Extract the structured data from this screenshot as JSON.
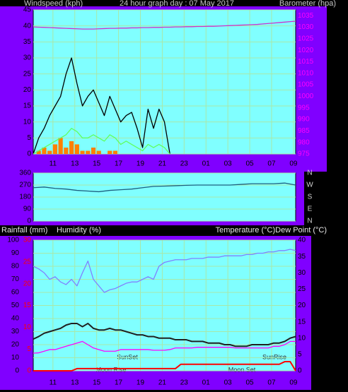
{
  "chart_data": [
    {
      "type": "line",
      "title": "24 hour graph day : 07 May 2017",
      "y_label": "Windspeed (kph)",
      "y2_label": "Barometer (hpa)",
      "grid": true,
      "xlim": [
        0,
        24
      ],
      "xticks": [
        {
          "value": 1.8,
          "label": "11"
        },
        {
          "value": 3.8,
          "label": "13"
        },
        {
          "value": 5.8,
          "label": "15"
        },
        {
          "value": 7.8,
          "label": "17"
        },
        {
          "value": 9.8,
          "label": "19"
        },
        {
          "value": 11.8,
          "label": "21"
        },
        {
          "value": 13.8,
          "label": "23"
        },
        {
          "value": 15.8,
          "label": "01"
        },
        {
          "value": 17.8,
          "label": "03"
        },
        {
          "value": 19.8,
          "label": "05"
        },
        {
          "value": 21.8,
          "label": "07"
        },
        {
          "value": 23.8,
          "label": "09"
        }
      ],
      "ylim": [
        0,
        45
      ],
      "yticks": [
        0,
        5,
        10,
        15,
        20,
        25,
        30,
        35,
        40,
        45
      ],
      "ycolor": "#000000",
      "y2lim": [
        975,
        1037.5
      ],
      "y2ticks": [
        975,
        980,
        985,
        990,
        995,
        1000,
        1005,
        1010,
        1015,
        1020,
        1025,
        1030,
        1035
      ],
      "y2color": "#ff00ff",
      "x": [
        0,
        0.5,
        1,
        1.5,
        2,
        2.5,
        3,
        3.5,
        4,
        4.5,
        5,
        5.5,
        6,
        6.5,
        7,
        7.5,
        8,
        8.5,
        9,
        9.5,
        10,
        10.5,
        11,
        11.5,
        12,
        12.5,
        13,
        13.5,
        14,
        14.5,
        15,
        15.5,
        16,
        16.5,
        17,
        17.5,
        18,
        18.5,
        19,
        19.5,
        20,
        20.5,
        21,
        21.5,
        22,
        22.5,
        23,
        23.5,
        24
      ],
      "series": [
        {
          "color": "#ff8000",
          "type": "bar",
          "values": [
            0,
            1,
            2,
            1,
            3,
            5,
            2,
            4,
            3,
            1,
            1,
            2,
            1,
            0,
            1,
            1,
            0,
            0,
            0,
            0,
            0,
            0,
            0,
            0,
            0,
            0,
            null,
            null,
            null,
            null,
            null,
            null,
            null,
            null,
            null,
            null,
            null,
            null,
            null,
            null,
            null,
            null,
            null,
            null,
            null,
            null,
            null,
            null,
            null
          ]
        },
        {
          "color": "#000000",
          "values": [
            0,
            5,
            8,
            12,
            15,
            18,
            25,
            30,
            22,
            15,
            18,
            20,
            16,
            12,
            18,
            14,
            10,
            12,
            13,
            8,
            2,
            14,
            8,
            14,
            10,
            0,
            null,
            null,
            null,
            null,
            null,
            null,
            null,
            null,
            null,
            null,
            null,
            null,
            null,
            null,
            null,
            null,
            null,
            null,
            null,
            null,
            null,
            null,
            null
          ]
        },
        {
          "color": "#60ff60",
          "values": [
            0,
            1,
            2,
            3,
            4,
            5,
            6,
            8,
            7,
            5,
            5,
            6,
            5,
            4,
            6,
            5,
            3,
            4,
            3,
            2,
            1,
            3,
            2,
            3,
            2,
            0,
            null,
            null,
            null,
            null,
            null,
            null,
            null,
            null,
            null,
            null,
            null,
            null,
            null,
            null,
            null,
            null,
            null,
            null,
            null,
            null,
            null,
            null,
            null
          ]
        },
        {
          "color": "#cc33cc",
          "axis": "y2",
          "values": [
            1030.1,
            1030,
            1029.9,
            1029.8,
            1029.7,
            1029.6,
            1029.5,
            1029.4,
            1029.3,
            1029.2,
            1029.2,
            1029.2,
            1029.3,
            1029.4,
            1029.5,
            1029.5,
            1029.6,
            1029.6,
            1029.7,
            1029.7,
            1029.8,
            1029.8,
            1029.9,
            1029.9,
            1030,
            1030,
            1030.1,
            1030.1,
            1030.2,
            1030.2,
            1030.3,
            1030.3,
            1030.4,
            1030.4,
            1030.5,
            1030.6,
            1030.7,
            1030.8,
            1030.9,
            1031,
            1031.1,
            1031.2,
            1031.4,
            1031.6,
            1031.8,
            1032,
            1032.2,
            1032.4,
            1032.6
          ]
        }
      ]
    },
    {
      "type": "line",
      "grid": true,
      "xlim": [
        0,
        24
      ],
      "ylim": [
        0,
        360
      ],
      "yticks": [
        0,
        90,
        180,
        270,
        360
      ],
      "ycolor": "#000000",
      "y2lim": [
        0,
        360
      ],
      "y2ticks": [
        {
          "value": 360,
          "label": "N"
        },
        {
          "value": 270,
          "label": "W"
        },
        {
          "value": 180,
          "label": "S"
        },
        {
          "value": 90,
          "label": "E"
        },
        {
          "value": 0,
          "label": "N"
        }
      ],
      "y2color": "#d0d0d0",
      "x": [
        0,
        1,
        2,
        3,
        4,
        5,
        6,
        7,
        8,
        9,
        10,
        11,
        12,
        13,
        14,
        15,
        16,
        17,
        18,
        19,
        20,
        21,
        22,
        23,
        24
      ],
      "series": [
        {
          "color": "#1f5f7f",
          "values": [
            250,
            255,
            245,
            240,
            230,
            225,
            220,
            230,
            235,
            240,
            250,
            260,
            262,
            265,
            268,
            270,
            270,
            270,
            270,
            275,
            280,
            280,
            280,
            285,
            270
          ]
        }
      ]
    },
    {
      "type": "line",
      "y3_label": "Rainfall (mm)",
      "y_label": "Humidity (%)",
      "y2_label": "Temperature (°C)Dew Point (°C)",
      "grid": true,
      "xlim": [
        0,
        24
      ],
      "xticks": [
        {
          "value": 1.8,
          "label": "11"
        },
        {
          "value": 3.8,
          "label": "13"
        },
        {
          "value": 5.8,
          "label": "15"
        },
        {
          "value": 7.8,
          "label": "17"
        },
        {
          "value": 9.8,
          "label": "19"
        },
        {
          "value": 11.8,
          "label": "21"
        },
        {
          "value": 13.8,
          "label": "23"
        },
        {
          "value": 15.8,
          "label": "01"
        },
        {
          "value": 17.8,
          "label": "03"
        },
        {
          "value": 19.8,
          "label": "05"
        },
        {
          "value": 21.8,
          "label": "07"
        },
        {
          "value": 23.8,
          "label": "09"
        }
      ],
      "ylim": [
        0,
        100
      ],
      "yticks": [
        0,
        10,
        20,
        30,
        40,
        50,
        60,
        70,
        80,
        90,
        100
      ],
      "ycolor": "#000000",
      "y3lim": [
        0,
        30
      ],
      "y3ticks": [
        0,
        5,
        10,
        15,
        20,
        25,
        30
      ],
      "y3color": "#ff0000",
      "y2lim": [
        0,
        40
      ],
      "y2ticks": [
        0,
        5,
        10,
        15,
        20,
        25,
        30,
        35,
        40
      ],
      "y2color": "#000000",
      "annotations": [
        "SunSet",
        "Moon Rise",
        "Moon Set",
        "SunRise"
      ],
      "x": [
        0,
        0.5,
        1,
        1.5,
        2,
        2.5,
        3,
        3.5,
        4,
        4.5,
        5,
        5.5,
        6,
        6.5,
        7,
        7.5,
        8,
        8.5,
        9,
        9.5,
        10,
        10.5,
        11,
        11.5,
        12,
        12.5,
        13,
        13.5,
        14,
        14.5,
        15,
        15.5,
        16,
        16.5,
        17,
        17.5,
        18,
        18.5,
        19,
        19.5,
        20,
        20.5,
        21,
        21.5,
        22,
        22.5,
        23,
        23.5,
        24
      ],
      "series": [
        {
          "color": "#8080ff",
          "values": [
            80,
            78,
            75,
            70,
            72,
            68,
            66,
            70,
            65,
            75,
            84,
            70,
            65,
            60,
            62,
            63,
            65,
            67,
            68,
            68,
            70,
            72,
            70,
            80,
            83,
            84,
            85,
            85,
            85,
            86,
            86,
            86,
            87,
            87,
            87,
            88,
            88,
            88,
            88,
            89,
            89,
            90,
            90,
            91,
            91,
            92,
            92,
            93,
            92
          ]
        },
        {
          "color": "#202020",
          "axis": "y2",
          "width": 2,
          "values": [
            9.7,
            10.5,
            11.5,
            12,
            12.5,
            13,
            14,
            14.5,
            14.5,
            13.5,
            14.5,
            13,
            12.5,
            12.5,
            13,
            12.5,
            12.5,
            12,
            11.5,
            11,
            11,
            10.5,
            10.5,
            10,
            10,
            10,
            9.5,
            9.5,
            9.5,
            9,
            9,
            9,
            8.5,
            8.5,
            8.5,
            8,
            8,
            7.5,
            7.5,
            7.5,
            8,
            8,
            8,
            8,
            8.5,
            8.5,
            9,
            10,
            10.5
          ]
        },
        {
          "color": "#ff00ff",
          "axis": "y2",
          "values": [
            5.4,
            5.5,
            6,
            6.5,
            6.5,
            7,
            7.5,
            8,
            8.5,
            9,
            8,
            7,
            6.5,
            6,
            6,
            6,
            6.5,
            6.5,
            6.5,
            6.5,
            6.5,
            6.5,
            6.3,
            6.3,
            6.3,
            6.5,
            7,
            7,
            7,
            7,
            7.2,
            7.2,
            7.2,
            7.2,
            7.2,
            7.2,
            7.2,
            7,
            7,
            7,
            7,
            7,
            7,
            7,
            7.5,
            7.5,
            8,
            9,
            9
          ]
        },
        {
          "color": "#ff0000",
          "axis": "y3",
          "width": 2,
          "values": [
            0,
            0,
            0,
            0,
            0,
            0,
            0,
            0,
            0.5,
            0.5,
            0.5,
            0.5,
            0.5,
            0.5,
            0.5,
            0.5,
            0.5,
            0.5,
            0.5,
            0.5,
            0.5,
            0.5,
            0.5,
            0.5,
            0.5,
            0.5,
            0.5,
            1.5,
            1.5,
            1.5,
            1.5,
            1.5,
            1.5,
            1.5,
            1.5,
            1.5,
            1.5,
            1.5,
            1.5,
            1.5,
            1.5,
            1.5,
            1.5,
            1.5,
            1.5,
            1.5,
            2.1,
            2.1,
            0
          ]
        }
      ]
    }
  ]
}
